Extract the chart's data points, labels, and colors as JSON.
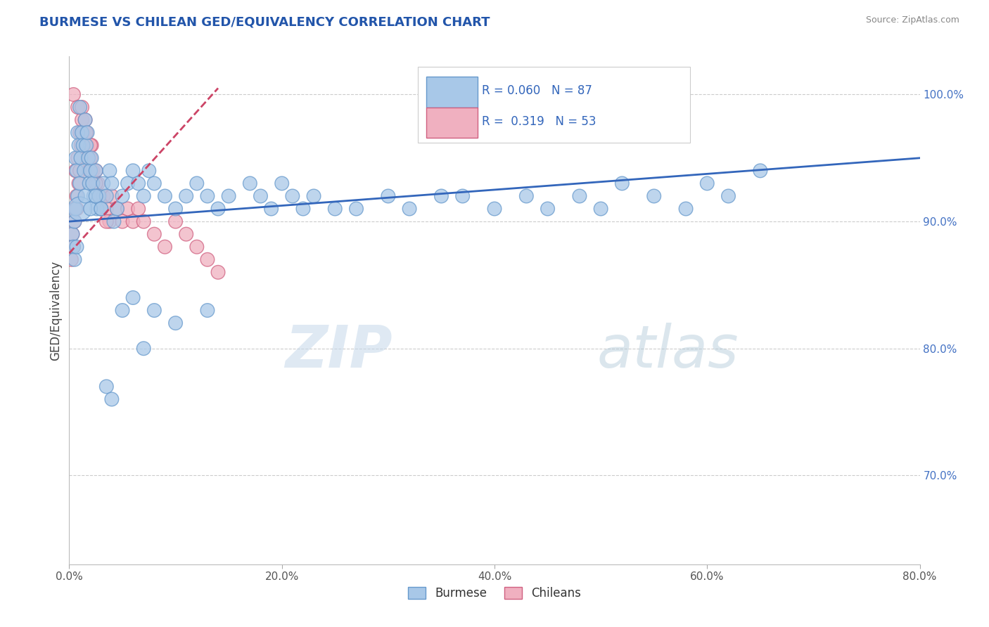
{
  "title": "BURMESE VS CHILEAN GED/EQUIVALENCY CORRELATION CHART",
  "source": "Source: ZipAtlas.com",
  "xlim": [
    0,
    80
  ],
  "ylim": [
    63,
    103
  ],
  "ytick_vals": [
    70,
    80,
    90,
    100
  ],
  "xtick_vals": [
    0,
    20,
    40,
    60,
    80
  ],
  "burmese_color": "#a8c8e8",
  "burmese_edge": "#6699cc",
  "chilean_color": "#f0b0c0",
  "chilean_edge": "#d06080",
  "burmese_line_color": "#3366bb",
  "chilean_line_color": "#cc4466",
  "burmese_R": 0.06,
  "burmese_N": 87,
  "chilean_R": 0.319,
  "chilean_N": 53,
  "watermark_zip": "ZIP",
  "watermark_atlas": "atlas",
  "ylabel": "GED/Equivalency",
  "burmese_x": [
    0.3,
    0.4,
    0.5,
    0.5,
    0.6,
    0.6,
    0.7,
    0.7,
    0.8,
    0.8,
    0.9,
    1.0,
    1.0,
    1.1,
    1.2,
    1.3,
    1.4,
    1.5,
    1.6,
    1.7,
    1.8,
    1.9,
    2.0,
    2.1,
    2.2,
    2.3,
    2.5,
    2.6,
    2.8,
    3.0,
    3.2,
    3.5,
    3.8,
    4.0,
    4.2,
    4.5,
    5.0,
    5.5,
    6.0,
    6.5,
    7.0,
    7.5,
    8.0,
    9.0,
    10.0,
    11.0,
    12.0,
    13.0,
    14.0,
    15.0,
    17.0,
    18.0,
    19.0,
    20.0,
    21.0,
    22.0,
    23.0,
    25.0,
    27.0,
    30.0,
    32.0,
    35.0,
    37.0,
    40.0,
    43.0,
    45.0,
    48.0,
    50.0,
    52.0,
    55.0,
    58.0,
    60.0,
    62.0,
    65.0,
    1.0,
    1.5,
    2.0,
    2.5,
    3.0,
    3.5,
    4.0,
    5.0,
    6.0,
    7.0,
    8.0,
    10.0,
    13.0
  ],
  "burmese_y": [
    89,
    88,
    90,
    87,
    95,
    91,
    94,
    88,
    97,
    92,
    96,
    99,
    93,
    95,
    97,
    96,
    94,
    98,
    96,
    97,
    95,
    93,
    94,
    95,
    93,
    92,
    94,
    91,
    92,
    91,
    93,
    92,
    94,
    93,
    90,
    91,
    92,
    93,
    94,
    93,
    92,
    94,
    93,
    92,
    91,
    92,
    93,
    92,
    91,
    92,
    93,
    92,
    91,
    93,
    92,
    91,
    92,
    91,
    91,
    92,
    91,
    92,
    92,
    91,
    92,
    91,
    92,
    91,
    93,
    92,
    91,
    93,
    92,
    94,
    91,
    92,
    91,
    92,
    91,
    77,
    76,
    83,
    84,
    80,
    83,
    82,
    83
  ],
  "chilean_x": [
    0.2,
    0.3,
    0.4,
    0.5,
    0.5,
    0.6,
    0.7,
    0.7,
    0.8,
    0.9,
    1.0,
    1.0,
    1.1,
    1.2,
    1.3,
    1.4,
    1.5,
    1.6,
    1.7,
    1.8,
    1.9,
    2.0,
    2.1,
    2.2,
    2.3,
    2.5,
    2.7,
    2.9,
    3.0,
    3.2,
    3.5,
    3.8,
    4.0,
    4.5,
    5.0,
    5.5,
    6.0,
    6.5,
    7.0,
    8.0,
    9.0,
    10.0,
    11.0,
    12.0,
    13.0,
    14.0,
    0.4,
    0.8,
    1.2,
    1.6,
    2.0,
    2.5,
    3.5
  ],
  "chilean_y": [
    87,
    89,
    88,
    91,
    90,
    94,
    92,
    91,
    95,
    93,
    97,
    94,
    96,
    98,
    97,
    96,
    98,
    97,
    96,
    95,
    94,
    95,
    96,
    94,
    93,
    94,
    93,
    92,
    91,
    92,
    91,
    90,
    92,
    91,
    90,
    91,
    90,
    91,
    90,
    89,
    88,
    90,
    89,
    88,
    87,
    86,
    100,
    99,
    99,
    97,
    96,
    93,
    90
  ],
  "burmese_size_base": 200,
  "burmese_size_large": 600,
  "burmese_large_idx": 74
}
